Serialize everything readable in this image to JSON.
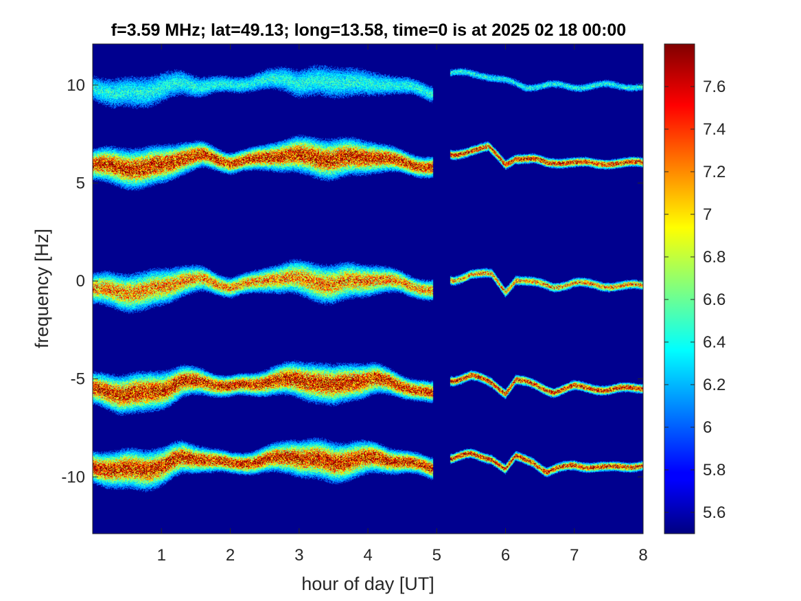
{
  "chart_data": {
    "type": "heatmap",
    "title": "f=3.59 MHz;  lat=49.13; long=13.58, time=0 is at 2025 02 18 00:00",
    "xlabel": "hour of day [UT]",
    "ylabel": "frequency [Hz]",
    "xlim": [
      0,
      8
    ],
    "ylim": [
      -12.9,
      12.1
    ],
    "x_ticks": [
      1,
      2,
      3,
      4,
      5,
      6,
      7,
      8
    ],
    "y_ticks": [
      -10,
      -5,
      0,
      5,
      10
    ],
    "grid": false,
    "colormap": "jet",
    "background_color": "#00008f",
    "colorbar": {
      "position": "right",
      "clim": [
        5.5,
        7.8
      ],
      "ticks": [
        5.6,
        5.8,
        6,
        6.2,
        6.4,
        6.6,
        6.8,
        7,
        7.2,
        7.4,
        7.6
      ]
    },
    "gap": {
      "x_start": 4.95,
      "x_end": 5.2
    },
    "series": [
      {
        "center_hz": 10,
        "strength": 0.35,
        "trace": [
          [
            0.02,
            9.9
          ],
          [
            0.3,
            9.55
          ],
          [
            0.6,
            9.6
          ],
          [
            1.0,
            9.85
          ],
          [
            1.3,
            10.1
          ],
          [
            1.6,
            9.95
          ],
          [
            2.0,
            10.0
          ],
          [
            2.5,
            10.2
          ],
          [
            2.8,
            10.35
          ],
          [
            3.0,
            10.1
          ],
          [
            3.3,
            10.15
          ],
          [
            3.7,
            10.2
          ],
          [
            4.0,
            10.0
          ],
          [
            4.3,
            10.1
          ],
          [
            4.6,
            9.9
          ],
          [
            4.9,
            9.6
          ],
          [
            5.45,
            10.6
          ],
          [
            5.7,
            10.5
          ],
          [
            6.0,
            10.2
          ],
          [
            6.3,
            9.9
          ],
          [
            6.6,
            10.0
          ],
          [
            7.0,
            9.9
          ],
          [
            7.5,
            10.0
          ],
          [
            7.98,
            9.9
          ]
        ]
      },
      {
        "center_hz": 6,
        "strength": 1.0,
        "trace": [
          [
            0.02,
            5.95
          ],
          [
            0.4,
            5.8
          ],
          [
            0.75,
            5.75
          ],
          [
            1.0,
            5.9
          ],
          [
            1.3,
            6.3
          ],
          [
            1.6,
            6.4
          ],
          [
            2.0,
            6.05
          ],
          [
            2.3,
            6.15
          ],
          [
            2.6,
            6.4
          ],
          [
            2.9,
            6.4
          ],
          [
            3.2,
            6.35
          ],
          [
            3.5,
            6.2
          ],
          [
            3.8,
            6.3
          ],
          [
            4.1,
            6.35
          ],
          [
            4.5,
            6.05
          ],
          [
            4.9,
            5.8
          ],
          [
            5.25,
            6.4
          ],
          [
            5.5,
            6.7
          ],
          [
            5.75,
            6.8
          ],
          [
            6.0,
            5.95
          ],
          [
            6.15,
            6.3
          ],
          [
            6.4,
            6.2
          ],
          [
            6.6,
            6.0
          ],
          [
            6.9,
            6.1
          ],
          [
            7.3,
            5.95
          ],
          [
            7.6,
            6.05
          ],
          [
            7.98,
            6.0
          ]
        ]
      },
      {
        "center_hz": 0,
        "strength": 0.8,
        "trace": [
          [
            0.02,
            -0.4
          ],
          [
            0.4,
            -0.55
          ],
          [
            0.75,
            -0.55
          ],
          [
            1.0,
            -0.35
          ],
          [
            1.3,
            0.05
          ],
          [
            1.6,
            0.05
          ],
          [
            2.0,
            -0.3
          ],
          [
            2.3,
            -0.15
          ],
          [
            2.6,
            0.15
          ],
          [
            2.9,
            0.15
          ],
          [
            3.2,
            0.0
          ],
          [
            3.5,
            -0.2
          ],
          [
            3.8,
            0.0
          ],
          [
            4.1,
            0.1
          ],
          [
            4.5,
            -0.1
          ],
          [
            4.9,
            -0.5
          ],
          [
            5.25,
            0.0
          ],
          [
            5.5,
            0.4
          ],
          [
            5.8,
            0.3
          ],
          [
            6.0,
            -0.55
          ],
          [
            6.15,
            0.1
          ],
          [
            6.4,
            -0.1
          ],
          [
            6.7,
            -0.3
          ],
          [
            7.0,
            -0.1
          ],
          [
            7.4,
            -0.25
          ],
          [
            7.98,
            -0.25
          ]
        ]
      },
      {
        "center_hz": -5,
        "strength": 1.0,
        "trace": [
          [
            0.02,
            -5.55
          ],
          [
            0.4,
            -5.75
          ],
          [
            0.75,
            -5.75
          ],
          [
            1.0,
            -5.55
          ],
          [
            1.3,
            -5.15
          ],
          [
            1.6,
            -5.15
          ],
          [
            2.0,
            -5.4
          ],
          [
            2.3,
            -5.3
          ],
          [
            2.6,
            -5.1
          ],
          [
            2.9,
            -5.05
          ],
          [
            3.2,
            -5.1
          ],
          [
            3.5,
            -5.4
          ],
          [
            3.8,
            -5.1
          ],
          [
            4.1,
            -5.0
          ],
          [
            4.5,
            -5.35
          ],
          [
            4.9,
            -5.75
          ],
          [
            5.25,
            -5.05
          ],
          [
            5.5,
            -4.85
          ],
          [
            5.8,
            -5.2
          ],
          [
            6.0,
            -5.7
          ],
          [
            6.15,
            -5.05
          ],
          [
            6.4,
            -5.3
          ],
          [
            6.7,
            -5.65
          ],
          [
            7.0,
            -5.4
          ],
          [
            7.5,
            -5.55
          ],
          [
            7.98,
            -5.45
          ]
        ]
      },
      {
        "center_hz": -9.5,
        "strength": 1.0,
        "trace": [
          [
            0.02,
            -9.5
          ],
          [
            0.4,
            -9.65
          ],
          [
            0.75,
            -9.65
          ],
          [
            1.0,
            -9.45
          ],
          [
            1.3,
            -9.05
          ],
          [
            1.6,
            -9.05
          ],
          [
            2.0,
            -9.35
          ],
          [
            2.3,
            -9.25
          ],
          [
            2.6,
            -9.1
          ],
          [
            2.9,
            -8.95
          ],
          [
            3.2,
            -9.1
          ],
          [
            3.5,
            -9.3
          ],
          [
            3.8,
            -9.1
          ],
          [
            4.1,
            -9.05
          ],
          [
            4.5,
            -9.2
          ],
          [
            4.9,
            -9.55
          ],
          [
            5.25,
            -9.05
          ],
          [
            5.5,
            -8.85
          ],
          [
            5.8,
            -9.05
          ],
          [
            6.0,
            -9.65
          ],
          [
            6.15,
            -9.0
          ],
          [
            6.4,
            -9.2
          ],
          [
            6.6,
            -9.75
          ],
          [
            7.0,
            -9.4
          ],
          [
            7.5,
            -9.55
          ],
          [
            7.98,
            -9.4
          ]
        ]
      }
    ]
  }
}
